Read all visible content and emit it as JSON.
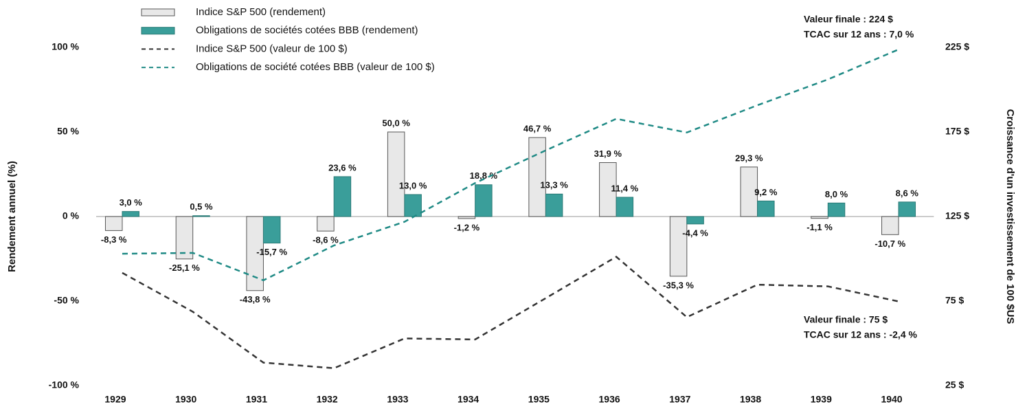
{
  "chart_data": {
    "type": "bar",
    "categories": [
      "1929",
      "1930",
      "1931",
      "1932",
      "1933",
      "1934",
      "1935",
      "1936",
      "1937",
      "1938",
      "1939",
      "1940"
    ],
    "series": [
      {
        "name": "Indice S&P 500 (rendement)",
        "type": "bar",
        "color": "#e8e8e8",
        "edge": "#555555",
        "values": [
          -8.3,
          -25.1,
          -43.8,
          -8.6,
          50.0,
          -1.2,
          46.7,
          31.9,
          -35.3,
          29.3,
          -1.1,
          -10.7
        ],
        "value_labels": [
          "-8,3 %",
          "-25,1 %",
          "-43,8 %",
          "-8,6 %",
          "50,0 %",
          "-1,2 %",
          "46,7 %",
          "31,9 %",
          "-35,3 %",
          "29,3 %",
          "-1,1 %",
          "-10,7 %"
        ]
      },
      {
        "name": "Obligations de sociétés cotées BBB (rendement)",
        "type": "bar",
        "color": "#3a9e9a",
        "edge": "#2a7a76",
        "values": [
          3.0,
          0.5,
          -15.7,
          23.6,
          13.0,
          18.8,
          13.3,
          11.4,
          -4.4,
          9.2,
          8.0,
          8.6
        ],
        "value_labels": [
          "3,0 %",
          "0,5 %",
          "-15,7 %",
          "23,6 %",
          "13,0 %",
          "18,8 %",
          "13,3 %",
          "11,4 %",
          "-4,4 %",
          "9,2 %",
          "8,0 %",
          "8,6 %"
        ]
      },
      {
        "name": "Indice S&P 500 (valeur de 100 $)",
        "type": "line",
        "axis": "y2",
        "color": "#333333",
        "linestyle": "dashed",
        "values": [
          91.7,
          68.7,
          38.6,
          35.3,
          52.9,
          52.3,
          76.7,
          101.2,
          65.5,
          84.7,
          83.7,
          74.8
        ]
      },
      {
        "name": "Obligations de société cotées BBB (valeur de 100 $)",
        "type": "line",
        "axis": "y2",
        "color": "#1f8a85",
        "linestyle": "dashed",
        "values": [
          103.0,
          103.5,
          87.3,
          107.9,
          121.9,
          144.8,
          164.1,
          182.8,
          174.7,
          190.8,
          206.1,
          223.8
        ]
      }
    ],
    "ylabel": "Rendement annuel (%)",
    "y2label": "Croissance d'un investissement de 100 $US",
    "ylim": [
      -100,
      100
    ],
    "yticks": [
      {
        "value": 100,
        "label": "100 %"
      },
      {
        "value": 50,
        "label": "50 %"
      },
      {
        "value": 0,
        "label": "0 %"
      },
      {
        "value": -50,
        "label": "-50 %"
      },
      {
        "value": -100,
        "label": "-100 %"
      }
    ],
    "y2lim": [
      25,
      225
    ],
    "y2ticks": [
      {
        "value": 225,
        "label": "225 $"
      },
      {
        "value": 175,
        "label": "175 $"
      },
      {
        "value": 125,
        "label": "125 $"
      },
      {
        "value": 75,
        "label": "75 $"
      },
      {
        "value": 25,
        "label": "25 $"
      }
    ],
    "annotations": [
      "Valeur finale : 224 $",
      "TCAC sur 12 ans : 7,0 %",
      "Valeur finale : 75 $",
      "TCAC sur 12 ans : -2,4 %"
    ]
  }
}
